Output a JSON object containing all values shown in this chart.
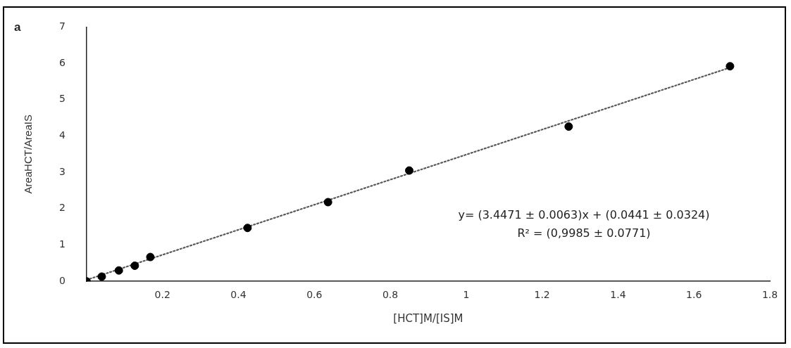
{
  "chart_data": {
    "type": "scatter",
    "xlabel": "[HCT]M/[IS]M",
    "ylabel": "AreaHCT/AreaIS",
    "annotations": [
      "a",
      "y= (3.4471 ± 0.0063)x + (0.0441 ± 0.0324)",
      "R² = (0,9985 ± 0.0771)"
    ],
    "series": [
      {
        "color": "#000000",
        "marker": "circle",
        "x": [
          0,
          0.04,
          0.085,
          0.127,
          0.168,
          0.424,
          0.636,
          0.85,
          1.27,
          1.695
        ],
        "values": [
          0,
          0.13,
          0.3,
          0.43,
          0.67,
          1.47,
          2.18,
          3.05,
          4.26,
          5.92
        ]
      },
      {
        "type": "line",
        "color": "#595959",
        "marker": "none",
        "line_style": "dotted",
        "x": [
          0,
          1.7
        ],
        "values": [
          0.04,
          5.9
        ]
      }
    ],
    "xlim": [
      0,
      1.8
    ],
    "xticks": [
      0.2,
      0.4,
      0.6,
      0.8,
      1,
      1.2,
      1.4,
      1.6,
      1.8
    ],
    "ylim": [
      0,
      7
    ],
    "yticks": [
      0,
      1,
      2,
      3,
      4,
      5,
      6,
      7
    ],
    "grid": false,
    "legend": false
  }
}
